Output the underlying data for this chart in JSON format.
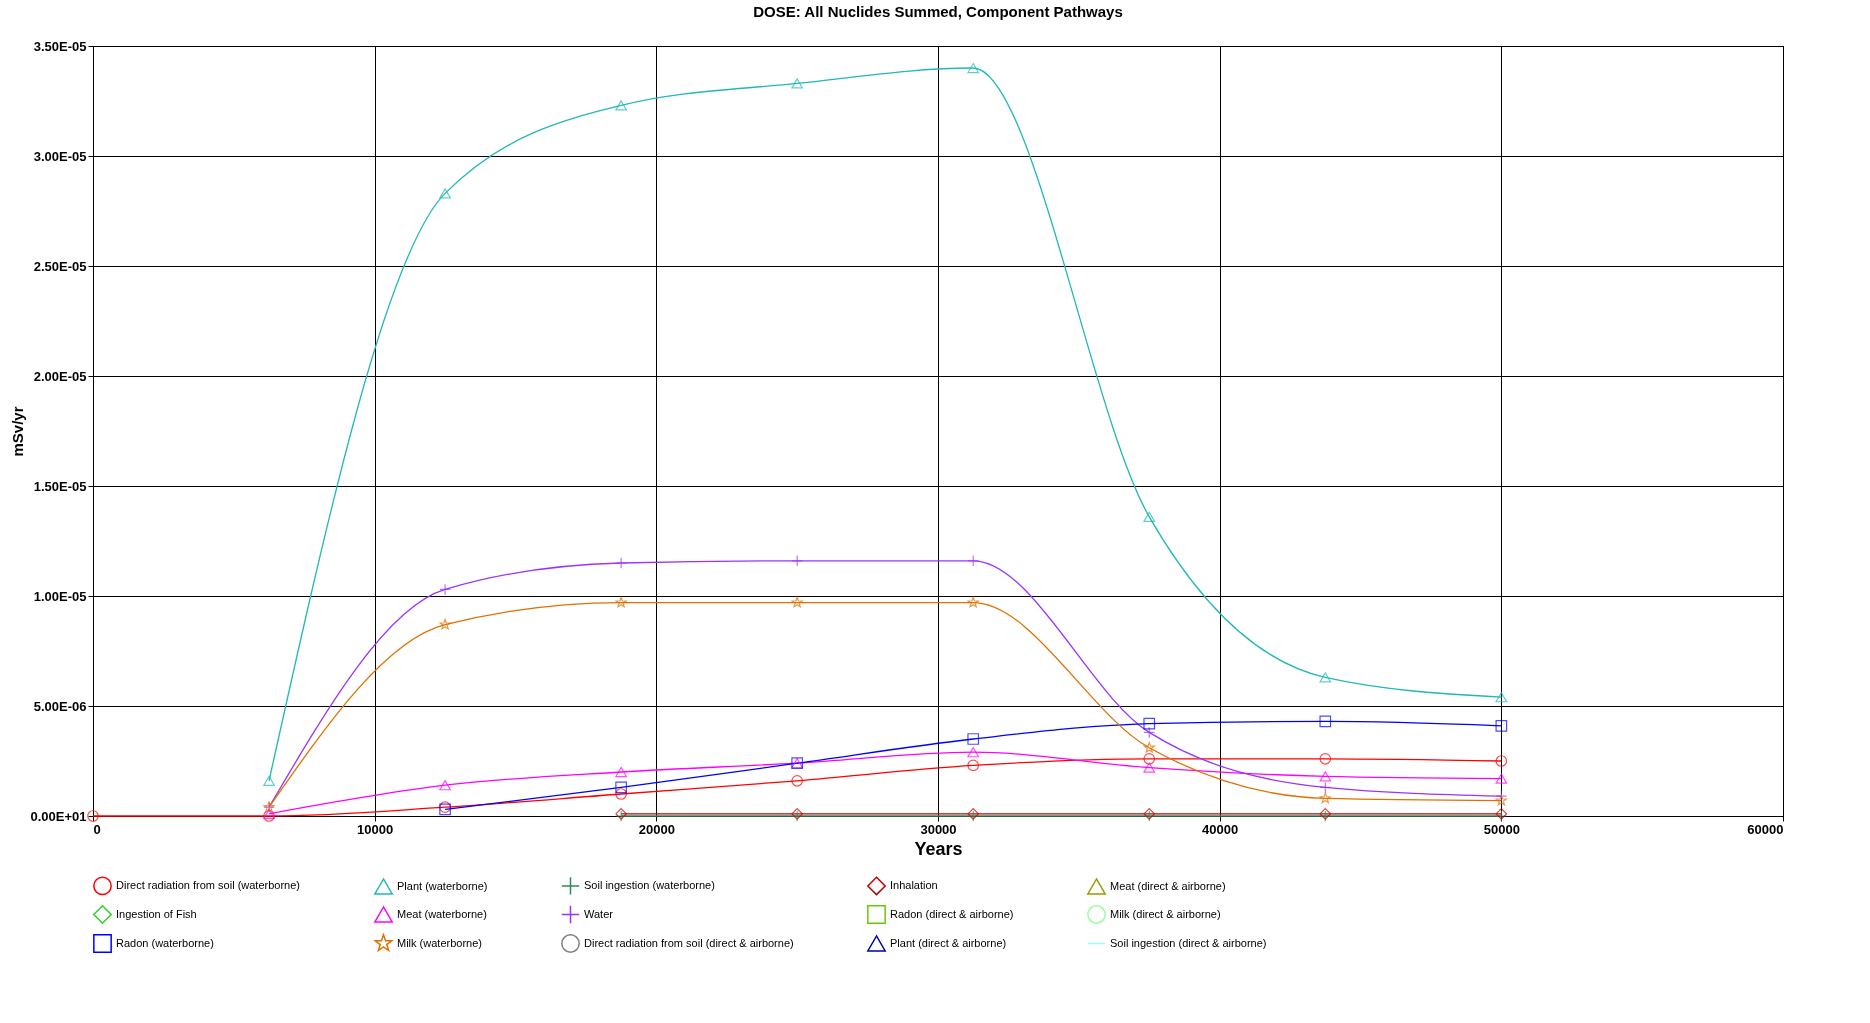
{
  "chart_data": {
    "type": "line",
    "title": "DOSE: All Nuclides Summed, Component Pathways",
    "xlabel": "Years",
    "ylabel": "mSv/yr",
    "x": [
      0,
      6250,
      12500,
      18750,
      25000,
      31250,
      37500,
      43750,
      50000
    ],
    "xlim": [
      0,
      60000
    ],
    "xticks": [
      {
        "value": 0,
        "label": "0"
      },
      {
        "value": 10000,
        "label": "10000"
      },
      {
        "value": 20000,
        "label": "20000"
      },
      {
        "value": 30000,
        "label": "30000"
      },
      {
        "value": 40000,
        "label": "40000"
      },
      {
        "value": 50000,
        "label": "50000"
      },
      {
        "value": 60000,
        "label": "60000"
      }
    ],
    "ylim": [
      0,
      3.5e-05
    ],
    "yticks": [
      {
        "value": 0,
        "label": "0.00E+01"
      },
      {
        "value": 5e-06,
        "label": "5.00E-06"
      },
      {
        "value": 1e-05,
        "label": "1.00E-05"
      },
      {
        "value": 1.5e-05,
        "label": "1.50E-05"
      },
      {
        "value": 2e-05,
        "label": "2.00E-05"
      },
      {
        "value": 2.5e-05,
        "label": "2.50E-05"
      },
      {
        "value": 3e-05,
        "label": "3.00E-05"
      },
      {
        "value": 3.5e-05,
        "label": "3.50E-05"
      }
    ],
    "grid": true,
    "legend": "bottom",
    "series": [
      {
        "name": "Direct radiation from soil (waterborne)",
        "color": "#ff0000",
        "marker": "circle",
        "values": [
          0,
          0,
          4e-07,
          1e-06,
          1.6e-06,
          2.3e-06,
          2.6e-06,
          2.6e-06,
          2.5e-06
        ]
      },
      {
        "name": "Plant (waterborne)",
        "color": "#22b8b8",
        "marker": "triangle",
        "values": [
          null,
          1.6e-06,
          2.83e-05,
          3.23e-05,
          3.33e-05,
          3.4e-05,
          1.36e-05,
          6.3e-06,
          5.4e-06
        ]
      },
      {
        "name": "Soil ingestion (waterborne)",
        "color": "#2e8b57",
        "marker": "cross",
        "values": [
          null,
          null,
          null,
          0,
          0,
          0,
          0,
          0,
          0
        ]
      },
      {
        "name": "Inhalation",
        "color": "#c00000",
        "marker": "diamond",
        "values": [
          null,
          null,
          null,
          1e-07,
          1e-07,
          1e-07,
          1e-07,
          1e-07,
          1e-07
        ]
      },
      {
        "name": "Meat (direct & airborne)",
        "color": "#999900",
        "marker": "triangle",
        "values": [
          null,
          null,
          null,
          null,
          null,
          null,
          null,
          null,
          null
        ]
      },
      {
        "name": "Ingestion of Fish",
        "color": "#33cc33",
        "marker": "diamond",
        "values": [
          null,
          null,
          null,
          null,
          null,
          null,
          null,
          null,
          null
        ]
      },
      {
        "name": "Meat (waterborne)",
        "color": "#ff00ff",
        "marker": "triangle",
        "values": [
          null,
          1e-07,
          1.4e-06,
          2e-06,
          2.4e-06,
          2.9e-06,
          2.2e-06,
          1.8e-06,
          1.7e-06
        ]
      },
      {
        "name": "Water",
        "color": "#9933ff",
        "marker": "cross",
        "values": [
          null,
          4e-07,
          1.03e-05,
          1.15e-05,
          1.16e-05,
          1.16e-05,
          3.8e-06,
          1.3e-06,
          9e-07
        ]
      },
      {
        "name": "Radon (direct & airborne)",
        "color": "#66cc00",
        "marker": "square",
        "values": [
          null,
          null,
          null,
          null,
          null,
          null,
          null,
          null,
          null
        ]
      },
      {
        "name": "Milk (direct & airborne)",
        "color": "#99ff99",
        "marker": "circle",
        "values": [
          null,
          null,
          null,
          null,
          null,
          null,
          null,
          null,
          null
        ]
      },
      {
        "name": "Radon (waterborne)",
        "color": "#0000ff",
        "marker": "square",
        "values": [
          null,
          null,
          3e-07,
          1.3e-06,
          2.4e-06,
          3.5e-06,
          4.2e-06,
          4.3e-06,
          4.1e-06
        ]
      },
      {
        "name": "Milk (waterborne)",
        "color": "#e07000",
        "marker": "star",
        "values": [
          null,
          4e-07,
          8.7e-06,
          9.7e-06,
          9.7e-06,
          9.7e-06,
          3.1e-06,
          8e-07,
          7e-07
        ]
      },
      {
        "name": "Direct radiation from soil (direct & airborne)",
        "color": "#808080",
        "marker": "circle",
        "values": [
          null,
          null,
          null,
          null,
          null,
          null,
          null,
          null,
          null
        ]
      },
      {
        "name": "Plant (direct & airborne)",
        "color": "#0000aa",
        "marker": "triangle",
        "values": [
          null,
          null,
          null,
          null,
          null,
          null,
          null,
          null,
          null
        ]
      },
      {
        "name": "Soil ingestion (direct & airborne)",
        "color": "#99ffff",
        "marker": "none",
        "values": [
          null,
          null,
          null,
          null,
          null,
          null,
          null,
          null,
          null
        ]
      }
    ]
  }
}
